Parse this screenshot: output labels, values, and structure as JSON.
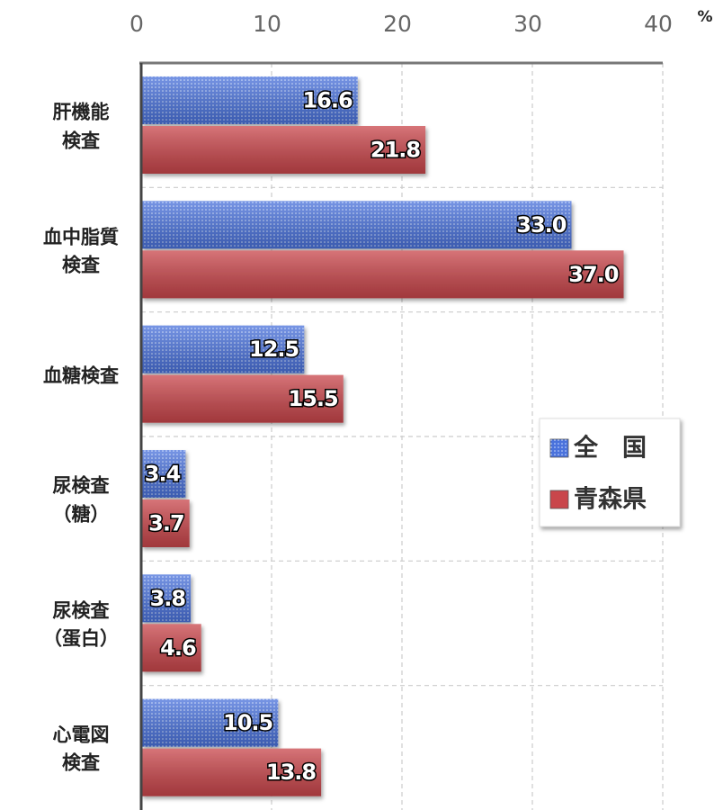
{
  "chart_data": {
    "type": "hbar",
    "xlabel": "%",
    "categories": [
      "肝機能\n検査",
      "血中脂質\n検査",
      "血糖検査",
      "尿検査\n（糖）",
      "尿検査\n（蛋白）",
      "心電図\n検査"
    ],
    "series": [
      {
        "name": "全　国",
        "color": "#4a72dc",
        "values": [
          16.6,
          33.0,
          12.5,
          3.4,
          3.8,
          10.5
        ],
        "value_labels": [
          "16.6",
          "33.0",
          "12.5",
          "3.4",
          "3.8",
          "10.5"
        ]
      },
      {
        "name": "青森県",
        "color": "#c9464b",
        "values": [
          21.8,
          37.0,
          15.5,
          3.7,
          4.6,
          13.8
        ],
        "value_labels": [
          "21.8",
          "37.0",
          "15.5",
          "3.7",
          "4.6",
          "13.8"
        ]
      }
    ],
    "xlim": [
      0,
      40
    ],
    "xticks": [
      0,
      10,
      20,
      30,
      40
    ],
    "grid": true,
    "legend": "right"
  }
}
